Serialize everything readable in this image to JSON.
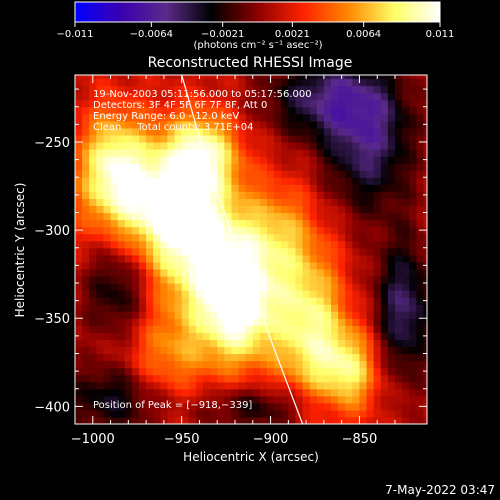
{
  "chart_data": {
    "type": "heatmap",
    "title": "Reconstructed RHESSI Image",
    "xlabel": "Heliocentric X (arcsec)",
    "ylabel": "Heliocentric Y (arcsec)",
    "xlim": [
      -1010,
      -812
    ],
    "ylim": [
      -410,
      -212
    ],
    "x_ticks": [
      -1000,
      -950,
      -900,
      -850
    ],
    "y_ticks": [
      -400,
      -350,
      -300,
      -250
    ],
    "x_tick_labels": [
      "−1000",
      "−950",
      "−900",
      "−850"
    ],
    "y_tick_labels": [
      "−400",
      "−350",
      "−300",
      "−250"
    ],
    "colorbar": {
      "range": [
        -0.011,
        0.011
      ],
      "ticks": [
        -0.011,
        -0.0064,
        -0.0021,
        0.0021,
        0.0064,
        0.011
      ],
      "tick_labels": [
        "−0.011",
        "−0.0064",
        "−0.0021",
        "0.0021",
        "0.0064",
        "0.011"
      ],
      "units": "(photons cm⁻² s⁻¹ asec⁻²)",
      "colors": [
        "#0000ff",
        "#3a00b0",
        "#5a2a8a",
        "#000000",
        "#8b0000",
        "#ff2200",
        "#ff8800",
        "#ffff66",
        "#ffffff"
      ]
    },
    "annotations": [
      "19-Nov-2003 05:11:56.000 to 05:17:56.000",
      "Detectors: 3F 4F 5F 6F 7F 8F, Att 0",
      "Energy Range: 6.0 - 12.0 keV",
      "Clean     Total counts: 3.71E+04"
    ],
    "peak_label": "Position of Peak = [−918,−339]",
    "peak": [
      -918,
      -339
    ],
    "limb": [
      [
        -950,
        -212
      ],
      [
        -935,
        -265
      ],
      [
        -915,
        -320
      ],
      [
        -897,
        -370
      ],
      [
        -882,
        -410
      ]
    ],
    "sources": [
      {
        "x": -918,
        "y": -339,
        "amp": 0.011,
        "sx": 16,
        "sy": 26
      },
      {
        "x": -945,
        "y": -300,
        "amp": 0.0085,
        "sx": 20,
        "sy": 30
      },
      {
        "x": -975,
        "y": -280,
        "amp": 0.007,
        "sx": 22,
        "sy": 25
      },
      {
        "x": -938,
        "y": -255,
        "amp": 0.0065,
        "sx": 14,
        "sy": 16
      },
      {
        "x": -878,
        "y": -355,
        "amp": 0.0075,
        "sx": 14,
        "sy": 32
      },
      {
        "x": -855,
        "y": -380,
        "amp": 0.0065,
        "sx": 12,
        "sy": 18
      },
      {
        "x": -960,
        "y": -375,
        "amp": 0.0045,
        "sx": 18,
        "sy": 22
      },
      {
        "x": -990,
        "y": -260,
        "amp": 0.005,
        "sx": 12,
        "sy": 22
      },
      {
        "x": -895,
        "y": -300,
        "amp": 0.004,
        "sx": 14,
        "sy": 20
      },
      {
        "x": -870,
        "y": -225,
        "amp": -0.0055,
        "sx": 24,
        "sy": 16
      },
      {
        "x": -845,
        "y": -250,
        "amp": -0.006,
        "sx": 18,
        "sy": 28
      },
      {
        "x": -825,
        "y": -345,
        "amp": -0.006,
        "sx": 12,
        "sy": 28
      },
      {
        "x": -985,
        "y": -330,
        "amp": -0.005,
        "sx": 14,
        "sy": 24
      },
      {
        "x": -985,
        "y": -395,
        "amp": -0.005,
        "sx": 22,
        "sy": 14
      },
      {
        "x": -905,
        "y": -400,
        "amp": -0.004,
        "sx": 28,
        "sy": 10
      }
    ]
  },
  "footer": {
    "timestamp": "7-May-2022 03:47"
  }
}
